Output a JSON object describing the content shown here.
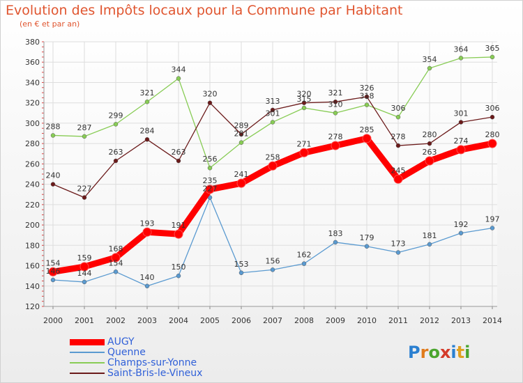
{
  "title": "Evolution des Impôts locaux pour la Commune par Habitant",
  "subtitle": "(en € et par an)",
  "logo_text": "Proxiti",
  "colors": {
    "title": "#e0552f",
    "axis_text": "#333333",
    "legend_text": "#3060d8"
  },
  "chart_data": {
    "type": "line",
    "title": "Evolution des Impôts locaux pour la Commune par Habitant",
    "subtitle": "(en € et par an)",
    "xlabel": "",
    "ylabel": "",
    "x": [
      "2000",
      "2001",
      "2002",
      "2003",
      "2004",
      "2005",
      "2006",
      "2007",
      "2008",
      "2009",
      "2010",
      "2011",
      "2012",
      "2013",
      "2014"
    ],
    "ylim": [
      120,
      380
    ],
    "yticks": [
      120,
      140,
      160,
      180,
      200,
      220,
      240,
      260,
      280,
      300,
      320,
      340,
      360,
      380
    ],
    "grid": true,
    "legend_position": "bottom-left",
    "series": [
      {
        "name": "AUGY",
        "color": "#ff0000",
        "values": [
          154,
          159,
          168,
          193,
          191,
          235,
          241,
          258,
          271,
          278,
          285,
          245,
          263,
          274,
          280
        ],
        "labels": [
          "154",
          "159",
          "168",
          "193",
          "191",
          "235",
          "241",
          "258",
          "271",
          "278",
          "285",
          "245",
          "263",
          "274",
          "280"
        ]
      },
      {
        "name": "Quenne",
        "color": "#5a9ad0",
        "values": [
          146,
          144,
          154,
          140,
          150,
          227,
          153,
          156,
          162,
          183,
          179,
          173,
          181,
          192,
          197
        ],
        "labels": [
          "146",
          "144",
          "154",
          "140",
          "150",
          "227",
          "153",
          "156",
          "162",
          "183",
          "179",
          "173",
          "181",
          "192",
          "197"
        ]
      },
      {
        "name": "Champs-sur-Yonne",
        "color": "#88cc55",
        "values": [
          288,
          287,
          299,
          321,
          344,
          256,
          281,
          301,
          315,
          310,
          318,
          306,
          354,
          364,
          365
        ],
        "labels": [
          "288",
          "287",
          "299",
          "321",
          "344",
          "256",
          "281",
          "301",
          "315",
          "310",
          "318",
          "306",
          "354",
          "364",
          "365"
        ]
      },
      {
        "name": "Saint-Bris-le-Vineux",
        "color": "#6b1a1a",
        "values": [
          240,
          227,
          263,
          284,
          263,
          320,
          289,
          313,
          320,
          321,
          326,
          278,
          280,
          301,
          306
        ],
        "labels": [
          "240",
          "227",
          "263",
          "284",
          "263",
          "320",
          "289",
          "313",
          "320",
          "321",
          "326",
          "278",
          "280",
          "301",
          "306"
        ]
      }
    ]
  }
}
